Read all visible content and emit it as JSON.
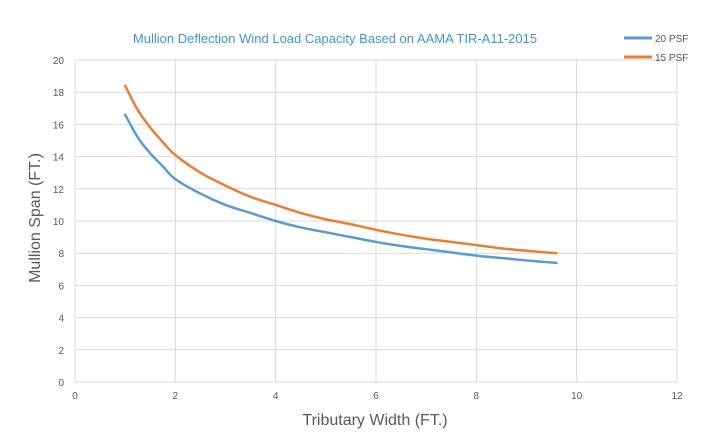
{
  "chart_data": {
    "type": "line",
    "title": "Mullion Deflection Wind Load Capacity Based on AAMA TIR-A11-2015",
    "xlabel": "Tributary Width (FT.)",
    "ylabel": "Mullion Span (FT.)",
    "xlim": [
      0,
      12
    ],
    "ylim": [
      0,
      20
    ],
    "x_ticks": [
      {
        "value": 0,
        "label": "0"
      },
      {
        "value": 2,
        "label": "2"
      },
      {
        "value": 4,
        "label": "4"
      },
      {
        "value": 6,
        "label": "6"
      },
      {
        "value": 8,
        "label": "8"
      },
      {
        "value": 10,
        "label": "10"
      },
      {
        "value": 12,
        "label": "12"
      }
    ],
    "y_ticks": [
      {
        "value": 0,
        "label": "0"
      },
      {
        "value": 2,
        "label": "2"
      },
      {
        "value": 4,
        "label": "4"
      },
      {
        "value": 6,
        "label": "6"
      },
      {
        "value": 8,
        "label": "8"
      },
      {
        "value": 10,
        "label": "10"
      },
      {
        "value": 12,
        "label": "12"
      },
      {
        "value": 14,
        "label": "14"
      },
      {
        "value": 16,
        "label": "16"
      },
      {
        "value": 18,
        "label": "18"
      },
      {
        "value": 20,
        "label": "20"
      }
    ],
    "grid": true,
    "legend_position": "top-right",
    "series": [
      {
        "name": "20 PSF",
        "color": "#5b9bd5",
        "points": [
          {
            "x": 1.0,
            "y": 16.6
          },
          {
            "x": 1.25,
            "y": 15.2
          },
          {
            "x": 1.5,
            "y": 14.2
          },
          {
            "x": 1.75,
            "y": 13.4
          },
          {
            "x": 2.0,
            "y": 12.6
          },
          {
            "x": 2.5,
            "y": 11.7
          },
          {
            "x": 3.0,
            "y": 11.0
          },
          {
            "x": 3.5,
            "y": 10.5
          },
          {
            "x": 4.0,
            "y": 10.0
          },
          {
            "x": 4.5,
            "y": 9.6
          },
          {
            "x": 5.0,
            "y": 9.3
          },
          {
            "x": 5.5,
            "y": 9.0
          },
          {
            "x": 6.0,
            "y": 8.7
          },
          {
            "x": 6.5,
            "y": 8.45
          },
          {
            "x": 7.0,
            "y": 8.25
          },
          {
            "x": 7.5,
            "y": 8.05
          },
          {
            "x": 8.0,
            "y": 7.85
          },
          {
            "x": 8.5,
            "y": 7.7
          },
          {
            "x": 9.0,
            "y": 7.55
          },
          {
            "x": 9.6,
            "y": 7.4
          }
        ]
      },
      {
        "name": "15 PSF",
        "color": "#ed7d31",
        "points": [
          {
            "x": 1.0,
            "y": 18.4
          },
          {
            "x": 1.25,
            "y": 16.9
          },
          {
            "x": 1.5,
            "y": 15.8
          },
          {
            "x": 1.75,
            "y": 14.9
          },
          {
            "x": 2.0,
            "y": 14.1
          },
          {
            "x": 2.5,
            "y": 13.0
          },
          {
            "x": 3.0,
            "y": 12.2
          },
          {
            "x": 3.5,
            "y": 11.5
          },
          {
            "x": 4.0,
            "y": 11.0
          },
          {
            "x": 4.5,
            "y": 10.5
          },
          {
            "x": 5.0,
            "y": 10.1
          },
          {
            "x": 5.5,
            "y": 9.8
          },
          {
            "x": 6.0,
            "y": 9.45
          },
          {
            "x": 6.5,
            "y": 9.15
          },
          {
            "x": 7.0,
            "y": 8.9
          },
          {
            "x": 7.5,
            "y": 8.7
          },
          {
            "x": 8.0,
            "y": 8.5
          },
          {
            "x": 8.5,
            "y": 8.3
          },
          {
            "x": 9.0,
            "y": 8.15
          },
          {
            "x": 9.6,
            "y": 8.0
          }
        ]
      }
    ]
  }
}
